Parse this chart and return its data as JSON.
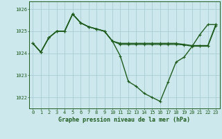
{
  "title": "Graphe pression niveau de la mer (hPa)",
  "background_color": "#cde8ec",
  "grid_color": "#a8cdd4",
  "line_color": "#1e5c1e",
  "xlim": [
    -0.5,
    23.5
  ],
  "ylim": [
    1021.5,
    1026.35
  ],
  "yticks": [
    1022,
    1023,
    1024,
    1025,
    1026
  ],
  "xticks": [
    0,
    1,
    2,
    3,
    4,
    5,
    6,
    7,
    8,
    9,
    10,
    11,
    12,
    13,
    14,
    15,
    16,
    17,
    18,
    19,
    20,
    21,
    22,
    23
  ],
  "y_flat1": [
    1024.45,
    1024.05,
    1024.7,
    1025.0,
    1025.0,
    1025.78,
    1025.38,
    1025.2,
    1025.1,
    1025.0,
    1024.55,
    1024.45,
    1024.45,
    1024.45,
    1024.45,
    1024.45,
    1024.45,
    1024.45,
    1024.45,
    1024.4,
    1024.35,
    1024.35,
    1024.35,
    1025.3
  ],
  "y_flat2": [
    1024.45,
    1024.05,
    1024.7,
    1025.0,
    1025.0,
    1025.78,
    1025.38,
    1025.2,
    1025.1,
    1025.0,
    1024.55,
    1024.4,
    1024.4,
    1024.4,
    1024.4,
    1024.4,
    1024.4,
    1024.4,
    1024.4,
    1024.38,
    1024.32,
    1024.32,
    1024.32,
    1025.25
  ],
  "y_dip": [
    1024.45,
    1024.05,
    1024.7,
    1025.0,
    1025.0,
    1025.78,
    1025.38,
    1025.2,
    1025.1,
    1025.0,
    1024.55,
    1023.87,
    1022.72,
    1022.5,
    1022.18,
    1022.0,
    1021.82,
    1022.7,
    1023.6,
    1023.82,
    1024.3,
    1024.85,
    1025.3,
    1025.3
  ],
  "marker": "+",
  "marker_size": 3,
  "line_width": 1.0
}
